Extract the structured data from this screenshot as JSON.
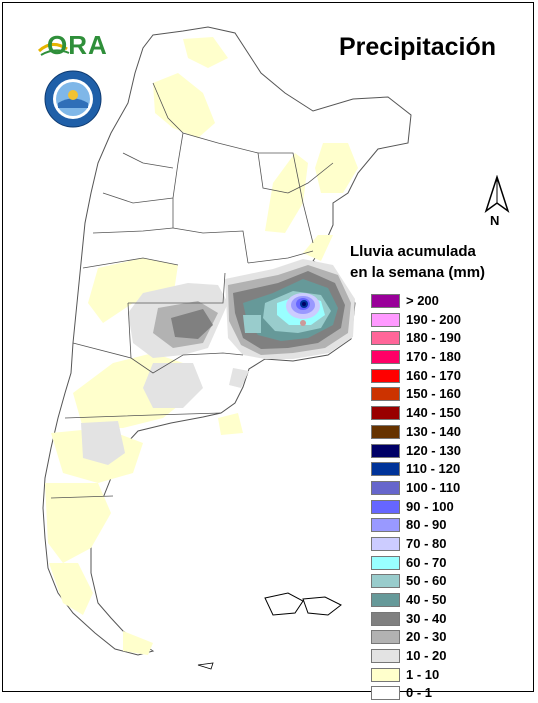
{
  "title": "Precipitación",
  "logo": {
    "text": "ORA",
    "icon": "ora-logo-icon"
  },
  "seal": {
    "icon": "smn-seal-icon"
  },
  "north_arrow": {
    "label": "N",
    "icon": "north-arrow-icon"
  },
  "legend": {
    "title_line1": "Lluvia acumulada",
    "title_line2": "en la semana (mm)",
    "items": [
      {
        "label": "> 200",
        "color": "#990099"
      },
      {
        "label": "190 - 200",
        "color": "#ff99ff"
      },
      {
        "label": "180 - 190",
        "color": "#ff6699"
      },
      {
        "label": "170 - 180",
        "color": "#ff0066"
      },
      {
        "label": "160 - 170",
        "color": "#ff0000"
      },
      {
        "label": "150 - 160",
        "color": "#cc3300"
      },
      {
        "label": "140 - 150",
        "color": "#990000"
      },
      {
        "label": "130 - 140",
        "color": "#663300"
      },
      {
        "label": "120 - 130",
        "color": "#000066"
      },
      {
        "label": "110 - 120",
        "color": "#003399"
      },
      {
        "label": "100 - 110",
        "color": "#6666cc"
      },
      {
        "label": "90 - 100",
        "color": "#6666ff"
      },
      {
        "label": "80 - 90",
        "color": "#9999ff"
      },
      {
        "label": "70 - 80",
        "color": "#ccccff"
      },
      {
        "label": "60 - 70",
        "color": "#99ffff"
      },
      {
        "label": "50 - 60",
        "color": "#99cccc"
      },
      {
        "label": "40 - 50",
        "color": "#669999"
      },
      {
        "label": "30 - 40",
        "color": "#808080"
      },
      {
        "label": "20 - 30",
        "color": "#b2b2b2"
      },
      {
        "label": "10 - 20",
        "color": "#e3e3e3"
      },
      {
        "label": "1 - 10",
        "color": "#ffffcc"
      },
      {
        "label": "0 - 1",
        "color": "#ffffff"
      }
    ]
  }
}
